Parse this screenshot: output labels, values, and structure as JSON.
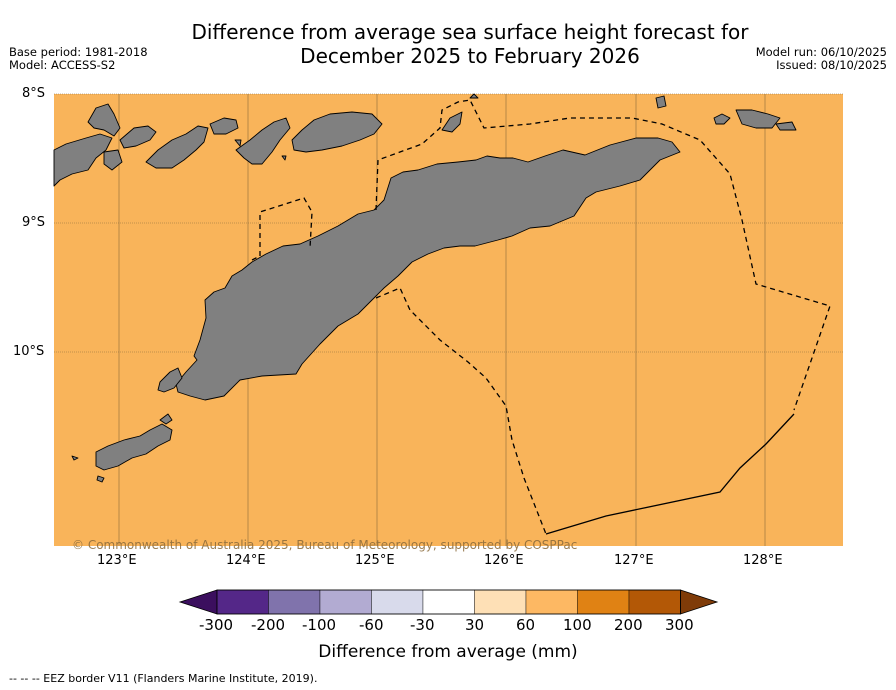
{
  "title_line1": "Difference from average sea surface height forecast for",
  "title_line2": "December 2025 to February 2026",
  "base_period": "Base period: 1981-2018",
  "model": "Model: ACCESS-S2",
  "model_run": "Model run: 06/10/2025",
  "issued": "Issued: 08/10/2025",
  "map": {
    "fill_color": "#f9b45a",
    "land_color": "#808080",
    "lat_labels": [
      "8°S",
      "9°S",
      "10°S"
    ],
    "lon_labels": [
      "123°E",
      "124°E",
      "125°E",
      "126°E",
      "127°E",
      "128°E"
    ],
    "copyright": "© Commonwealth of Australia 2025, Bureau of Meteorology, supported by COSPPac"
  },
  "colorbar": {
    "ticks": [
      "-300",
      "-200",
      "-100",
      "-60",
      "-30",
      "30",
      "60",
      "100",
      "200",
      "300"
    ],
    "colors": [
      "#3b0f5e",
      "#542788",
      "#8073ac",
      "#b2abd2",
      "#d8daeb",
      "#ffffff",
      "#fee0b6",
      "#fdb863",
      "#e08214",
      "#b35806",
      "#7f3b08"
    ],
    "title": "Difference from average (mm)"
  },
  "footer": "--  --  -- EEZ border V11 (Flanders Marine Institute, 2019)."
}
